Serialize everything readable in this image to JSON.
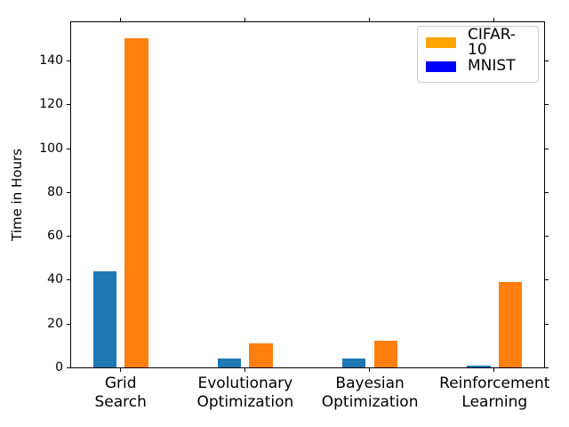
{
  "chart_data": {
    "type": "bar",
    "title": "",
    "ylabel": "Time in Hours",
    "xlabel": "",
    "categories": [
      "Grid\nSearch",
      "Evolutionary\nOptimization",
      "Bayesian\nOptimization",
      "Reinforcement\nLearning"
    ],
    "series": [
      {
        "name": "MNIST",
        "color": "#1f77b4",
        "values": [
          44,
          4,
          4,
          1
        ]
      },
      {
        "name": "CIFAR-10",
        "color": "#ff7f0e",
        "values": [
          150,
          11,
          12,
          39
        ]
      }
    ],
    "ylim": [
      0,
      157.5
    ],
    "yticks": [
      0,
      20,
      40,
      60,
      80,
      100,
      120,
      140
    ],
    "grid": false,
    "background_color": "#ffffff",
    "axis_color": "#000000",
    "legend": {
      "position": "upper right",
      "entries": [
        {
          "label": "CIFAR-10",
          "color": "#FFA500"
        },
        {
          "label": "MNIST",
          "color": "#0000FF"
        }
      ]
    }
  }
}
